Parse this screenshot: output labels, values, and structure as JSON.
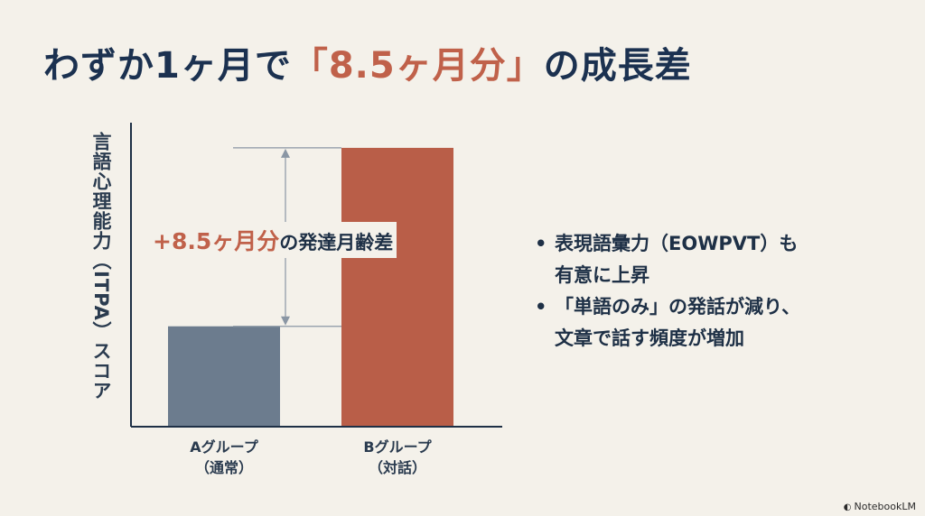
{
  "title": {
    "prefix": "わずか1ヶ月で",
    "highlight": "「8.5ヶ月分」",
    "suffix": "の成長差"
  },
  "chart_data": {
    "type": "bar",
    "categories": [
      "Aグループ（通常）",
      "Bグループ（対話）"
    ],
    "category_lines": [
      [
        "Aグループ",
        "（通常）"
      ],
      [
        "Bグループ",
        "（対話）"
      ]
    ],
    "values": [
      36,
      100
    ],
    "ylabel": "言語心理能力（ITPA）スコア",
    "xlabel": "",
    "ylim": [
      0,
      110
    ],
    "grid": false,
    "bar_colors": [
      "#6c7c8e",
      "#b95e48"
    ],
    "annotation": {
      "value": "+8.5ヶ月分",
      "text": "の発達月齢差",
      "from_category": 0,
      "to_category": 1
    }
  },
  "bullets": [
    [
      "表現語彙力（EOWPVT）も",
      "有意に上昇"
    ],
    [
      "「単語のみ」の発話が減り、",
      "文章で話す頻度が増加"
    ]
  ],
  "brand": {
    "icon": "notebooklm-icon",
    "label": "NotebookLM"
  },
  "colors": {
    "accent": "#c0614a",
    "title": "#1b3150",
    "background": "#f4f1ea"
  }
}
